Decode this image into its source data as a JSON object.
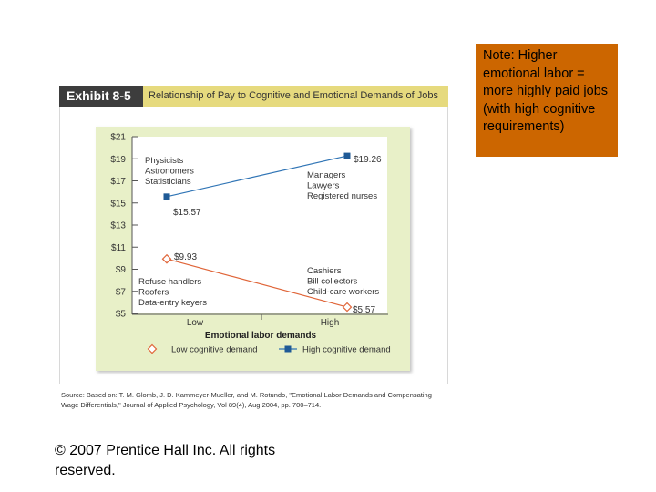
{
  "note": "Note: Higher emotional labor = more highly paid jobs (with high cognitive requirements)",
  "exhibit": {
    "tag": "Exhibit 8-5",
    "title": "Relationship of Pay to Cognitive and Emotional Demands of Jobs",
    "source": "Source: Based on: T. M. Glomb, J. D. Kammeyer-Mueller, and M. Rotundo, \"Emotional Labor Demands and Compensating Wage Differentials,\" Journal of Applied Psychology, Vol 89(4), Aug 2004, pp. 700–714."
  },
  "copyright": "© 2007 Prentice Hall Inc. All rights reserved.",
  "chart_data": {
    "type": "line",
    "title": "",
    "xlabel": "Emotional labor demands",
    "ylabel": "",
    "categories": [
      "Low",
      "High"
    ],
    "y_ticks": [
      "$21",
      "$19",
      "$17",
      "$15",
      "$13",
      "$11",
      "$9",
      "$7",
      "$5"
    ],
    "ylim": [
      5,
      21
    ],
    "grid": false,
    "legend_position": "bottom",
    "series": [
      {
        "name": "Low cognitive demand",
        "values": [
          9.93,
          5.57
        ],
        "value_labels": [
          "$9.93",
          "$5.57"
        ],
        "color": "#e0663a",
        "marker": "diamond-open",
        "line_color": "#e0663a",
        "jobs": [
          [
            "Refuse handlers",
            "Roofers",
            "Data-entry keyers"
          ],
          [
            "Cashiers",
            "Bill collectors",
            "Child-care workers"
          ]
        ]
      },
      {
        "name": "High cognitive demand",
        "values": [
          15.57,
          19.26
        ],
        "value_labels": [
          "$15.57",
          "$19.26"
        ],
        "color": "#1f5a96",
        "marker": "square",
        "line_color": "#2f74b5",
        "jobs": [
          [
            "Physicists",
            "Astronomers",
            "Statisticians"
          ],
          [
            "Managers",
            "Lawyers",
            "Registered nurses"
          ]
        ]
      }
    ]
  }
}
